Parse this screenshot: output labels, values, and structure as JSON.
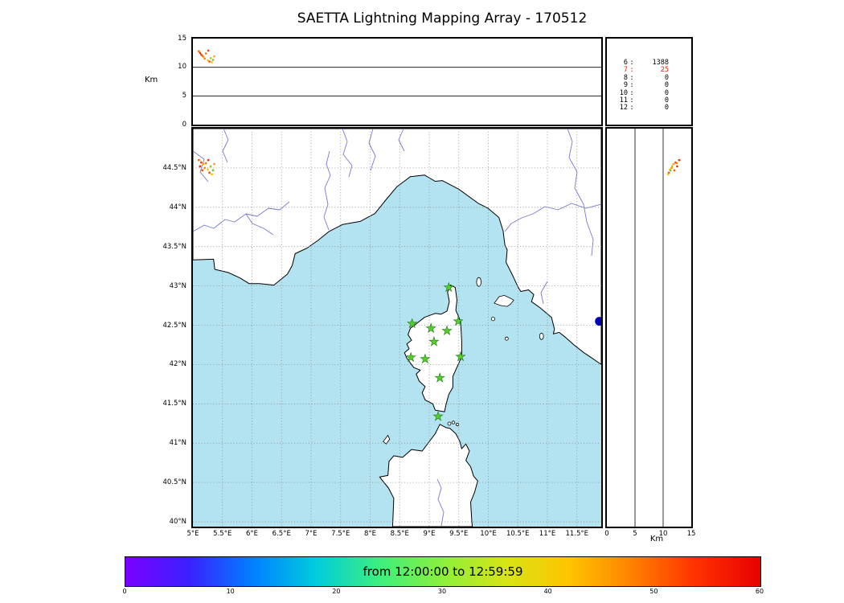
{
  "title": "SAETTA Lightning Mapping Array - 170512",
  "alt_panel": {
    "ylabel": "Km",
    "yticks": [
      15,
      10,
      5,
      0
    ],
    "ymax": 15,
    "gridlines": [
      5,
      10
    ]
  },
  "stats_panel": {
    "rows": [
      {
        "ch": "6",
        "count": "1388",
        "red": false
      },
      {
        "ch": "7",
        "count": "25",
        "red": true
      },
      {
        "ch": "8",
        "count": "0",
        "red": false
      },
      {
        "ch": "9",
        "count": "0",
        "red": false
      },
      {
        "ch": "10",
        "count": "0",
        "red": false
      },
      {
        "ch": "11",
        "count": "0",
        "red": false
      },
      {
        "ch": "12",
        "count": "0",
        "red": false
      }
    ]
  },
  "map": {
    "sea_color": "#b3e3f1",
    "lat_ticks": [
      {
        "v": 44.5,
        "label": "44.5°N"
      },
      {
        "v": 44,
        "label": "44°N"
      },
      {
        "v": 43.5,
        "label": "43.5°N"
      },
      {
        "v": 43,
        "label": "43°N"
      },
      {
        "v": 42.5,
        "label": "42.5°N"
      },
      {
        "v": 42,
        "label": "42°N"
      },
      {
        "v": 41.5,
        "label": "41.5°N"
      },
      {
        "v": 41,
        "label": "41°N"
      },
      {
        "v": 40.5,
        "label": "40.5°N"
      },
      {
        "v": 40,
        "label": "40°N"
      }
    ],
    "lon_ticks": [
      {
        "v": 5,
        "label": "5°E"
      },
      {
        "v": 5.5,
        "label": "5.5°E"
      },
      {
        "v": 6,
        "label": "6°E"
      },
      {
        "v": 6.5,
        "label": "6.5°E"
      },
      {
        "v": 7,
        "label": "7°E"
      },
      {
        "v": 7.5,
        "label": "7.5°E"
      },
      {
        "v": 8,
        "label": "8°E"
      },
      {
        "v": 8.5,
        "label": "8.5°E"
      },
      {
        "v": 9,
        "label": "9°E"
      },
      {
        "v": 9.5,
        "label": "9.5°E"
      },
      {
        "v": 10,
        "label": "10°E"
      },
      {
        "v": 10.5,
        "label": "10.5°E"
      },
      {
        "v": 11,
        "label": "11°E"
      },
      {
        "v": 11.5,
        "label": "11.5°E"
      }
    ]
  },
  "right_panel": {
    "xlabel": "Km",
    "xticks": [
      0,
      5,
      10,
      15
    ],
    "gridlines": [
      5,
      10
    ]
  },
  "colorbar": {
    "label": "from 12:00:00 to 12:59:59",
    "ticks": [
      0,
      10,
      20,
      30,
      40,
      50,
      60
    ],
    "gradient": [
      "#7a00ff",
      "#3a20ff",
      "#0080ff",
      "#00ccdd",
      "#3cf07c",
      "#8cf03c",
      "#d8e414",
      "#ffc400",
      "#ff8000",
      "#ff3000",
      "#e80000"
    ]
  },
  "chart_data": {
    "type": "scatter",
    "title": "SAETTA Lightning Mapping Array - 170512",
    "time_window": {
      "from": "12:00:00",
      "to": "12:59:59"
    },
    "colorbar_axis": {
      "units": "minutes",
      "range": [
        0,
        60
      ],
      "ticks": [
        0,
        10,
        20,
        30,
        40,
        50,
        60
      ]
    },
    "map_extent": {
      "lon": [
        5.0,
        11.91
      ],
      "lat": [
        39.94,
        45.0
      ]
    },
    "altitude_axis_km": {
      "range": [
        0,
        15
      ],
      "ticks": [
        0,
        5,
        10,
        15
      ]
    },
    "source_counts_min_stations": [
      [
        "6",
        1388
      ],
      [
        "7",
        25
      ],
      [
        "8",
        0
      ],
      [
        "9",
        0
      ],
      [
        "10",
        0
      ],
      [
        "11",
        0
      ],
      [
        "12",
        0
      ]
    ],
    "stations_lonlat": [
      [
        9.33,
        42.98
      ],
      [
        8.71,
        42.52
      ],
      [
        9.03,
        42.46
      ],
      [
        9.3,
        42.43
      ],
      [
        9.49,
        42.55
      ],
      [
        9.08,
        42.29
      ],
      [
        8.69,
        42.09
      ],
      [
        8.93,
        42.07
      ],
      [
        9.53,
        42.1
      ],
      [
        9.18,
        41.83
      ],
      [
        9.15,
        41.34
      ]
    ],
    "sources": [
      {
        "lon": 5.1,
        "lat": 44.6,
        "alt": 12.8,
        "color": "#ff6a00"
      },
      {
        "lon": 5.14,
        "lat": 44.57,
        "alt": 12.2,
        "color": "#ff3c00"
      },
      {
        "lon": 5.18,
        "lat": 44.55,
        "alt": 11.8,
        "color": "#ffa500"
      },
      {
        "lon": 5.12,
        "lat": 44.52,
        "alt": 12.5,
        "color": "#e03000"
      },
      {
        "lon": 5.2,
        "lat": 44.5,
        "alt": 11.5,
        "color": "#ff8800"
      },
      {
        "lon": 5.25,
        "lat": 44.48,
        "alt": 11.2,
        "color": "#ffc800"
      },
      {
        "lon": 5.16,
        "lat": 44.47,
        "alt": 12.0,
        "color": "#ff5500"
      },
      {
        "lon": 5.3,
        "lat": 44.52,
        "alt": 11.6,
        "color": "#9ccf00"
      },
      {
        "lon": 5.22,
        "lat": 44.56,
        "alt": 12.4,
        "color": "#ff7700"
      },
      {
        "lon": 5.28,
        "lat": 44.44,
        "alt": 11.0,
        "color": "#ff4400"
      },
      {
        "lon": 5.34,
        "lat": 44.47,
        "alt": 11.3,
        "color": "#6cc43a"
      },
      {
        "lon": 5.26,
        "lat": 44.6,
        "alt": 12.9,
        "color": "#e83a10"
      },
      {
        "lon": 5.36,
        "lat": 44.55,
        "alt": 11.9,
        "color": "#ff9933"
      },
      {
        "lon": 5.32,
        "lat": 44.42,
        "alt": 10.9,
        "color": "#ffbb00"
      }
    ],
    "edge_source": {
      "lon": 11.88,
      "lat": 42.55,
      "color": "#0000bb",
      "r": 5.5
    }
  }
}
